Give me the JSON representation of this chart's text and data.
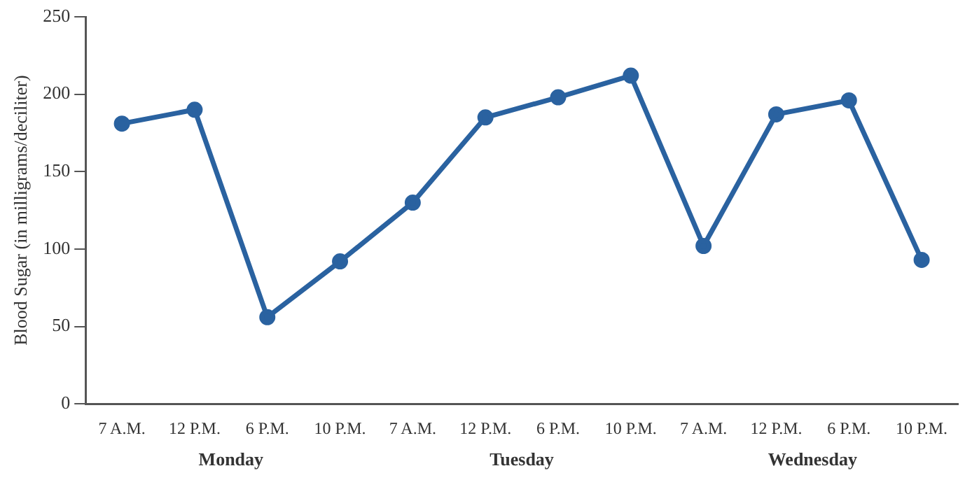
{
  "chart_data": {
    "type": "line",
    "ylabel": "Blood Sugar (in milligrams/deciliter)",
    "categories": [
      "7 A.M.",
      "12 P.M.",
      "6 P.M.",
      "10 P.M.",
      "7 A.M.",
      "12 P.M.",
      "6 P.M.",
      "10 P.M.",
      "7 A.M.",
      "12 P.M.",
      "6 P.M.",
      "10 P.M."
    ],
    "series": [
      {
        "color": "#2a62a0",
        "values": [
          181,
          190,
          56,
          92,
          130,
          185,
          198,
          212,
          102,
          187,
          196,
          93
        ]
      }
    ],
    "annotations": [
      "Monday",
      "Tuesday",
      "Wednesday"
    ],
    "ylim": [
      0,
      250
    ],
    "yticks": [
      0,
      50,
      100,
      150,
      200,
      250
    ],
    "grid": false,
    "legend": false,
    "marker": "circle",
    "line_style": "solid"
  }
}
